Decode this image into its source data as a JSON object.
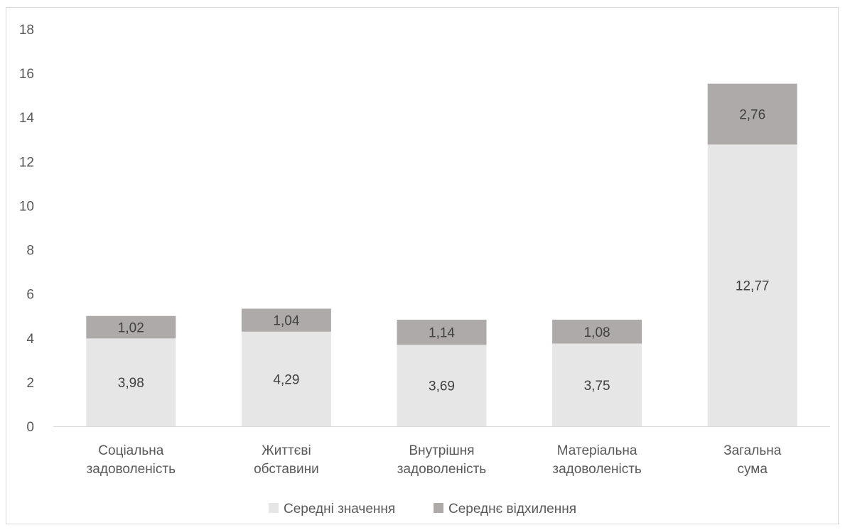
{
  "chart_data": {
    "type": "bar",
    "stacked": true,
    "categories": [
      [
        "Соціальна",
        "задоволеність"
      ],
      [
        "Життєві",
        "обставини"
      ],
      [
        "Внутрішня",
        "задоволеність"
      ],
      [
        "Матеріальна",
        "задоволеність"
      ],
      [
        "Загальна",
        "сума"
      ]
    ],
    "series": [
      {
        "name": "Середні значення",
        "values": [
          3.98,
          4.29,
          3.69,
          3.75,
          12.77
        ],
        "labels": [
          "3,98",
          "4,29",
          "3,69",
          "3,75",
          "12,77"
        ],
        "color": "#e7e6e6"
      },
      {
        "name": "Середнє відхилення",
        "values": [
          1.02,
          1.04,
          1.14,
          1.08,
          2.76
        ],
        "labels": [
          "1,02",
          "1,04",
          "1,14",
          "1,08",
          "2,76"
        ],
        "color": "#aeaaaa"
      }
    ],
    "ylim": [
      0,
      18
    ],
    "yticks": [
      0,
      2,
      4,
      6,
      8,
      10,
      12,
      14,
      16,
      18
    ],
    "grid": false,
    "legend": "bottom",
    "title": "",
    "xlabel": "",
    "ylabel": ""
  }
}
